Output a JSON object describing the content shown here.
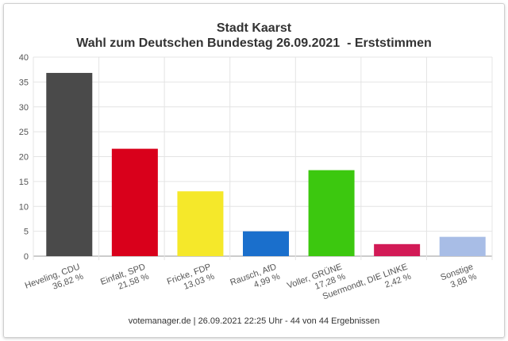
{
  "chart_data": {
    "type": "bar",
    "title": "Stadt Kaarst",
    "subtitle": "Wahl zum Deutschen Bundestag 26.09.2021  - Erststimmen",
    "categories": [
      "Heveling, CDU",
      "Einfalt, SPD",
      "Fricke, FDP",
      "Rausch, AfD",
      "Voller, GRÜNE",
      "Suermondt, DIE LINKE",
      "Sonstige"
    ],
    "values": [
      36.82,
      21.58,
      13.03,
      4.99,
      17.28,
      2.42,
      3.88
    ],
    "value_labels": [
      "36,82 %",
      "21,58 %",
      "13,03 %",
      "4,99 %",
      "17,28 %",
      "2,42 %",
      "3,88 %"
    ],
    "colors": [
      "#4a4a4a",
      "#d9001b",
      "#f5e82a",
      "#1a6fcc",
      "#3cc80f",
      "#d21a56",
      "#a8bde6"
    ],
    "yticks": [
      0,
      5,
      10,
      15,
      20,
      25,
      30,
      35,
      40
    ],
    "ylim": [
      0,
      40
    ],
    "xlabel": "",
    "ylabel": "",
    "grid": true,
    "legend": "none",
    "footer": "votemanager.de | 26.09.2021 22:25 Uhr - 44 von 44 Ergebnissen"
  }
}
